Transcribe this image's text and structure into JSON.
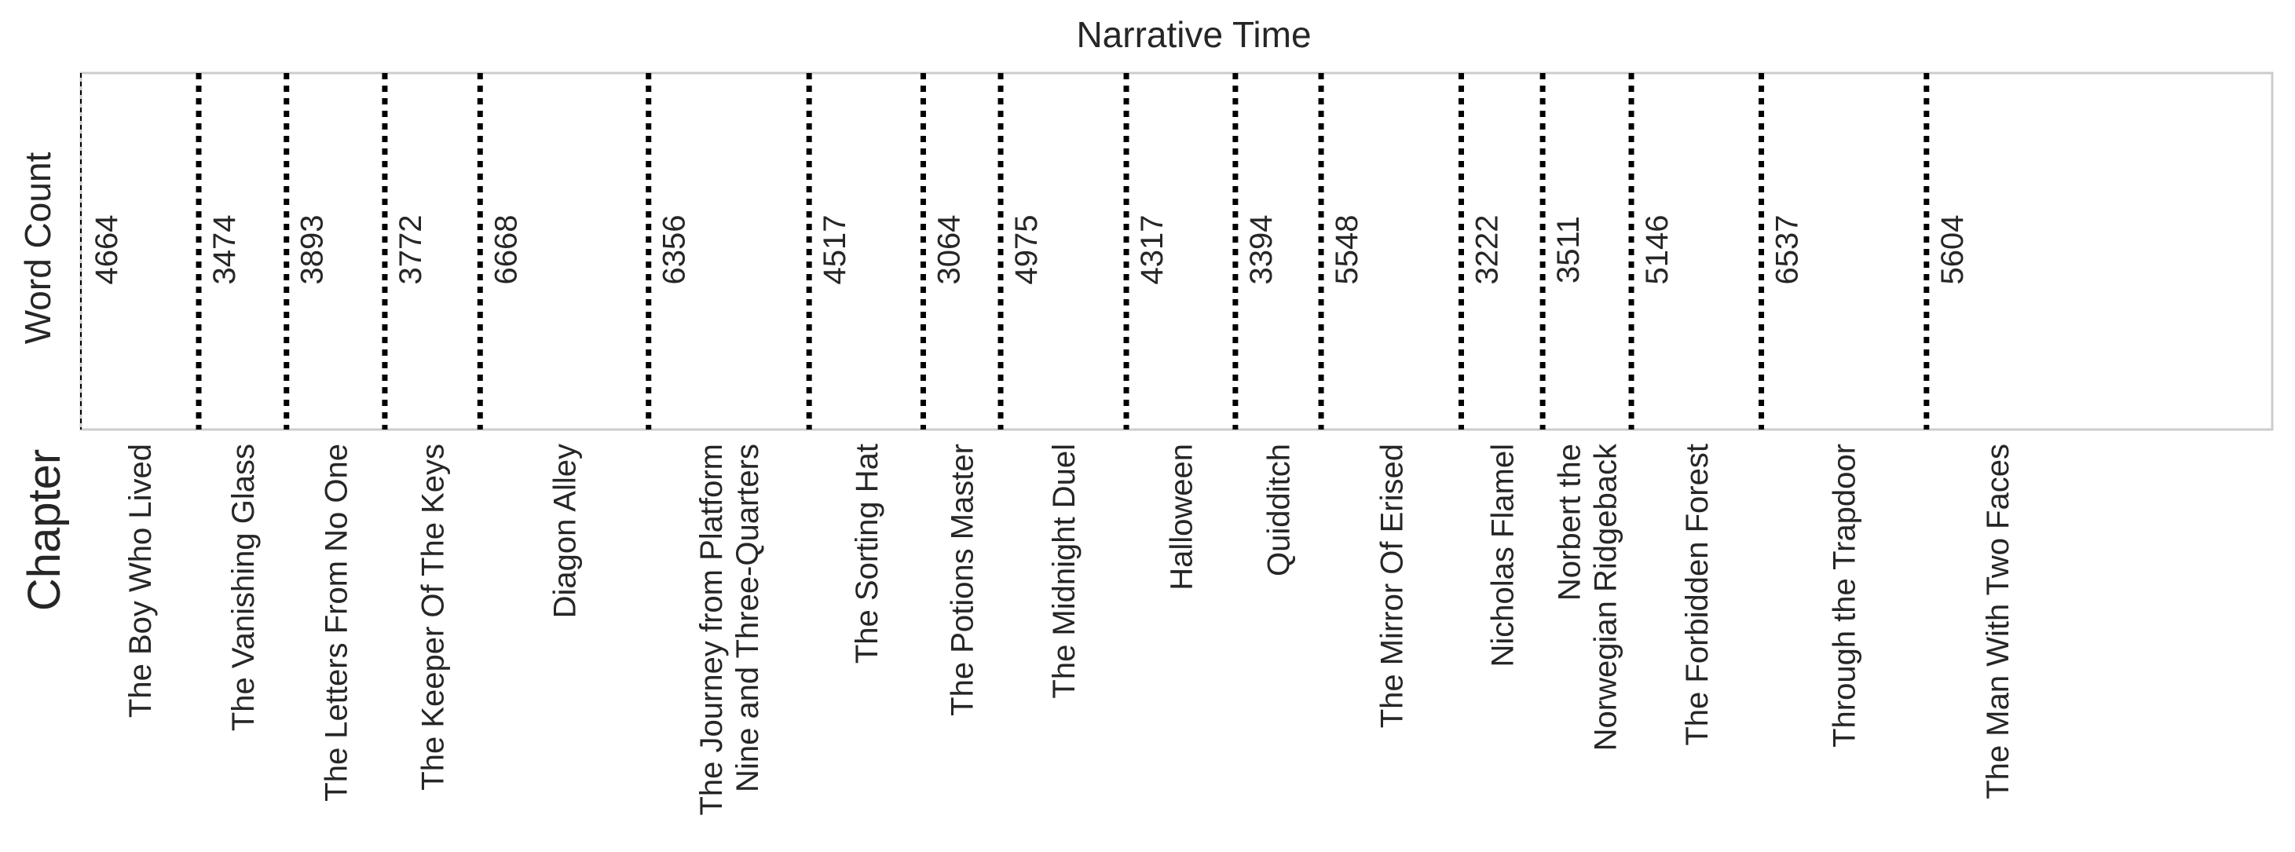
{
  "chart_data": {
    "type": "bar",
    "title": "Narrative Time",
    "xlabel": "Chapter",
    "ylabel": "Word Count",
    "grid": false,
    "x_unit": "cumulative word count",
    "xlim": [
      0,
      86744
    ],
    "categories": [
      "The Boy Who Lived",
      "The Vanishing Glass",
      "The Letters From No One",
      "The Keeper Of The Keys",
      "Diagon Alley",
      "The Journey from Platform\nNine and Three-Quarters",
      "The Sorting Hat",
      "The Potions Master",
      "The Midnight Duel",
      "Halloween",
      "Quidditch",
      "The Mirror Of Erised",
      "Nicholas Flamel",
      "Norbert the\nNorwegian Ridgeback",
      "The Forbidden Forest",
      "Through the Trapdoor",
      "The Man With Two Faces"
    ],
    "values": [
      4664,
      3474,
      3893,
      3772,
      6668,
      6356,
      4517,
      3064,
      4975,
      4317,
      3394,
      5548,
      3222,
      3511,
      5146,
      6537,
      5604
    ],
    "value_labels": [
      "4664",
      "3474",
      "3893",
      "3772",
      "6668",
      "6356",
      "4517",
      "3064",
      "4975",
      "4317",
      "3394",
      "5548",
      "3222",
      "3511",
      "5146",
      "6537",
      "5604"
    ]
  }
}
